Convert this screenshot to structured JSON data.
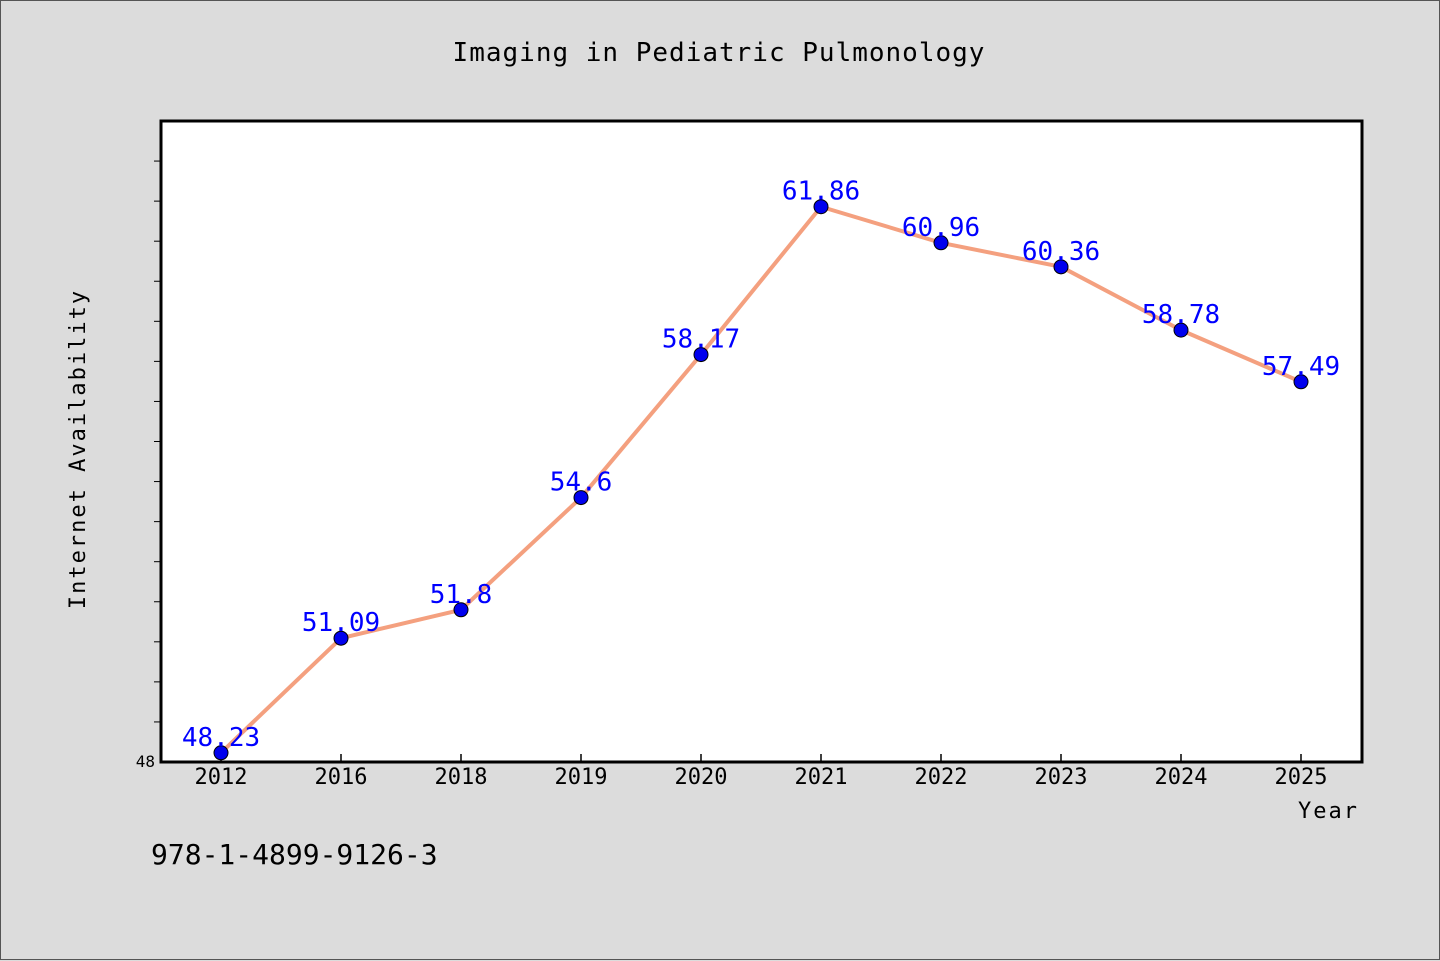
{
  "chart_data": {
    "type": "line",
    "title": "Imaging in Pediatric Pulmonology",
    "xlabel": "Year",
    "ylabel": "Internet Availability",
    "categories": [
      "2012",
      "2016",
      "2018",
      "2019",
      "2020",
      "2021",
      "2022",
      "2023",
      "2024",
      "2025"
    ],
    "series": [
      {
        "values": [
          48.23,
          51.09,
          51.8,
          54.6,
          58.17,
          61.86,
          60.96,
          60.36,
          58.78,
          57.49
        ],
        "labels": [
          "48.23",
          "51.09",
          "51.8",
          "54.6",
          "58.17",
          "61.86",
          "60.96",
          "60.36",
          "58.78",
          "57.49"
        ],
        "line_color": "#f4a07f",
        "marker_color": "#0000ee"
      }
    ],
    "ylim": [
      48,
      64
    ],
    "y_tick_labels": [
      "48"
    ],
    "grid": false,
    "legend": "none"
  },
  "footer": {
    "isbn": "978-1-4899-9126-3"
  }
}
